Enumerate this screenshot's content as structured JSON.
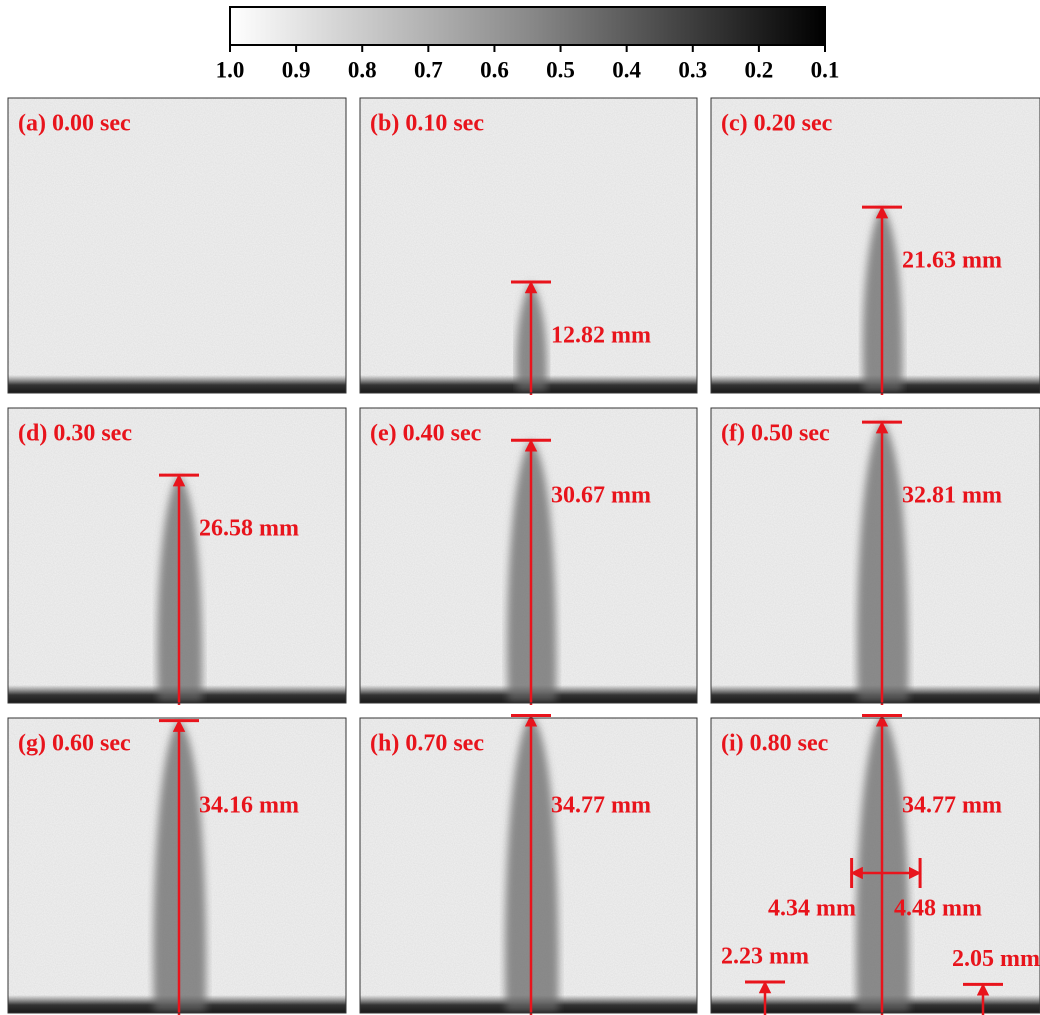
{
  "colorbar": {
    "lim": [
      1,
      0.1
    ],
    "ticks": [
      {
        "value": 1,
        "label": "1.0"
      },
      0.9,
      0.8,
      0.7,
      0.6,
      0.5,
      0.4,
      0.3,
      0.2,
      0.1
    ]
  },
  "panels": [
    {
      "label": "(a) 0.00 sec"
    },
    {
      "label": "(b) 0.10 sec",
      "height": {
        "value": 12.82,
        "label": "12.82 mm"
      }
    },
    {
      "label": "(c) 0.20 sec",
      "height": {
        "value": 21.63,
        "label": "21.63 mm"
      }
    },
    {
      "label": "(d) 0.30 sec",
      "height": {
        "value": 26.58,
        "label": "26.58 mm"
      }
    },
    {
      "label": "(e) 0.40 sec",
      "height": {
        "value": 30.67,
        "label": "30.67 mm"
      }
    },
    {
      "label": "(f) 0.50 sec",
      "height": {
        "value": 32.81,
        "label": "32.81 mm"
      }
    },
    {
      "label": "(g) 0.60 sec",
      "height": {
        "value": 34.16,
        "label": "34.16 mm"
      }
    },
    {
      "label": "(h) 0.70 sec",
      "height": {
        "value": 34.77,
        "label": "34.77 mm"
      }
    },
    {
      "label": "(i) 0.80 sec",
      "height": {
        "value": 34.77,
        "label": "34.77 mm"
      },
      "width_left": {
        "value": 4.34,
        "label": "4.34 mm"
      },
      "width_right": {
        "value": 4.48,
        "label": "4.48 mm"
      },
      "offset_left": {
        "value": 2.23,
        "label": "2.23 mm"
      },
      "offset_right": {
        "value": 2.05,
        "label": "2.05 mm"
      }
    }
  ]
}
